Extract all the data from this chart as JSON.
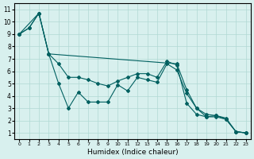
{
  "xlabel": "Humidex (Indice chaleur)",
  "background_color": "#d8f0ee",
  "grid_color": "#b0d8d4",
  "line_color": "#006060",
  "xlim": [
    -0.5,
    23.5
  ],
  "ylim": [
    0.5,
    11.5
  ],
  "xticks": [
    0,
    1,
    2,
    3,
    4,
    5,
    6,
    7,
    8,
    9,
    10,
    11,
    12,
    13,
    14,
    15,
    16,
    17,
    18,
    19,
    20,
    21,
    22,
    23
  ],
  "yticks": [
    1,
    2,
    3,
    4,
    5,
    6,
    7,
    8,
    9,
    10,
    11
  ],
  "series1": [
    [
      0,
      9
    ],
    [
      1,
      9.5
    ],
    [
      2,
      10.7
    ],
    [
      3,
      7.4
    ],
    [
      4,
      5.0
    ],
    [
      5,
      3.0
    ],
    [
      6,
      4.3
    ],
    [
      7,
      3.5
    ],
    [
      8,
      3.5
    ],
    [
      9,
      3.5
    ],
    [
      10,
      4.9
    ],
    [
      11,
      4.4
    ],
    [
      12,
      5.5
    ],
    [
      13,
      5.3
    ],
    [
      14,
      5.1
    ],
    [
      15,
      6.6
    ],
    [
      16,
      6.1
    ],
    [
      17,
      4.2
    ],
    [
      18,
      3.0
    ],
    [
      19,
      2.5
    ],
    [
      20,
      2.4
    ],
    [
      21,
      2.1
    ],
    [
      22,
      1.1
    ],
    [
      23,
      1.0
    ]
  ],
  "series2": [
    [
      0,
      9
    ],
    [
      1,
      9.5
    ],
    [
      2,
      10.7
    ],
    [
      3,
      7.4
    ],
    [
      4,
      6.6
    ],
    [
      5,
      5.5
    ],
    [
      6,
      5.5
    ],
    [
      7,
      5.3
    ],
    [
      8,
      5.0
    ],
    [
      9,
      4.8
    ],
    [
      10,
      5.2
    ],
    [
      11,
      5.5
    ],
    [
      12,
      5.8
    ],
    [
      13,
      5.8
    ],
    [
      14,
      5.5
    ],
    [
      15,
      6.8
    ],
    [
      16,
      6.5
    ],
    [
      17,
      3.4
    ],
    [
      18,
      2.5
    ],
    [
      19,
      2.3
    ],
    [
      20,
      2.3
    ],
    [
      21,
      2.1
    ],
    [
      22,
      1.1
    ],
    [
      23,
      1.0
    ]
  ],
  "series3": [
    [
      0,
      9
    ],
    [
      2,
      10.7
    ],
    [
      3,
      7.4
    ],
    [
      16,
      6.6
    ],
    [
      17,
      4.5
    ],
    [
      18,
      3.0
    ],
    [
      19,
      2.3
    ],
    [
      20,
      2.4
    ],
    [
      21,
      2.2
    ],
    [
      22,
      1.1
    ],
    [
      23,
      1.0
    ]
  ]
}
